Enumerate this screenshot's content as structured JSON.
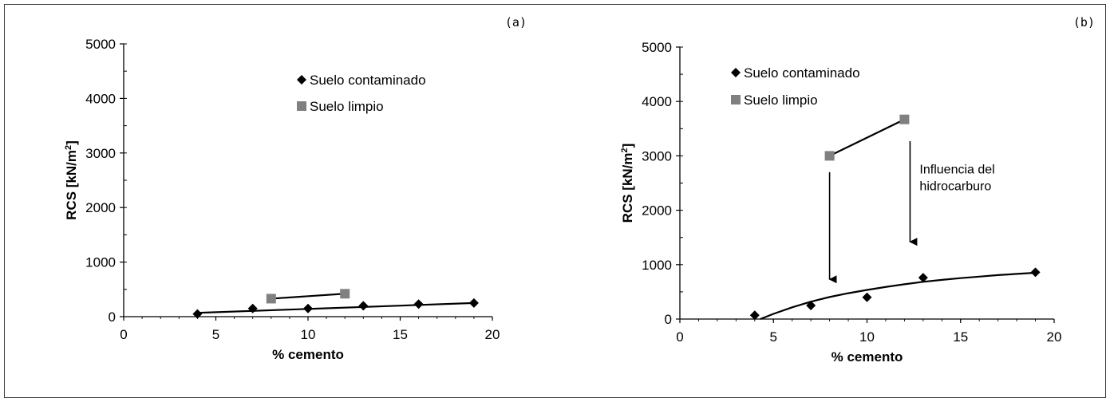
{
  "chart_data": [
    {
      "type": "scatter",
      "panel_label": "(a)",
      "title": "",
      "xlabel": "% cemento",
      "ylabel": "RCS  [kN/m",
      "ylabel_sup": "2",
      "ylabel_close": "]",
      "xlim": [
        0,
        20
      ],
      "ylim": [
        0,
        5000
      ],
      "xticks": [
        "0",
        "5",
        "10",
        "15",
        "20"
      ],
      "yticks": [
        "0",
        "1000",
        "2000",
        "3000",
        "4000",
        "5000"
      ],
      "grid": false,
      "legend_position": "top-right",
      "series": [
        {
          "name": "Suelo contaminado",
          "marker": "diamond",
          "color": "#000000",
          "x": [
            4,
            7,
            10,
            13,
            16,
            19
          ],
          "y": [
            50,
            150,
            150,
            200,
            230,
            250
          ],
          "trend": {
            "x": [
              4,
              19
            ],
            "y": [
              70,
              250
            ]
          }
        },
        {
          "name": "Suelo limpio",
          "marker": "square",
          "color": "#808080",
          "x": [
            8,
            12
          ],
          "y": [
            330,
            420
          ],
          "trend": {
            "x": [
              8,
              12
            ],
            "y": [
              330,
              420
            ]
          }
        }
      ],
      "annotations": []
    },
    {
      "type": "scatter",
      "panel_label": "(b)",
      "title": "",
      "xlabel": "% cemento",
      "ylabel": "RCS  [kN/m",
      "ylabel_sup": "2",
      "ylabel_close": "]",
      "xlim": [
        0,
        20
      ],
      "ylim": [
        0,
        5000
      ],
      "xticks": [
        "0",
        "5",
        "10",
        "15",
        "20"
      ],
      "yticks": [
        "0",
        "1000",
        "2000",
        "3000",
        "4000",
        "5000"
      ],
      "grid": false,
      "legend_position": "top-left",
      "series": [
        {
          "name": "Suelo contaminado",
          "marker": "diamond",
          "color": "#000000",
          "x": [
            4,
            7,
            10,
            13,
            19
          ],
          "y": [
            70,
            250,
            400,
            760,
            860
          ],
          "trend": {
            "x": [
              4.3,
              5,
              6,
              7,
              8,
              9,
              10,
              11,
              12,
              13,
              14,
              15,
              16,
              17,
              18,
              19
            ],
            "y": [
              0,
              95,
              215,
              320,
              405,
              475,
              535,
              590,
              640,
              685,
              720,
              752,
              780,
              808,
              830,
              850
            ]
          }
        },
        {
          "name": "Suelo limpio",
          "marker": "square",
          "color": "#808080",
          "x": [
            8,
            12
          ],
          "y": [
            3000,
            3670
          ],
          "trend": {
            "x": [
              8,
              12
            ],
            "y": [
              3000,
              3670
            ]
          }
        }
      ],
      "annotations": [
        {
          "text_lines": [
            "Influencia del",
            "hidrocarburo"
          ],
          "x": 12.3,
          "y": 2500
        }
      ],
      "arrows": [
        {
          "x": 8,
          "y_from": 2700,
          "y_to": 730
        },
        {
          "x": 12.3,
          "y_from": 3270,
          "y_to": 1420
        }
      ]
    }
  ]
}
